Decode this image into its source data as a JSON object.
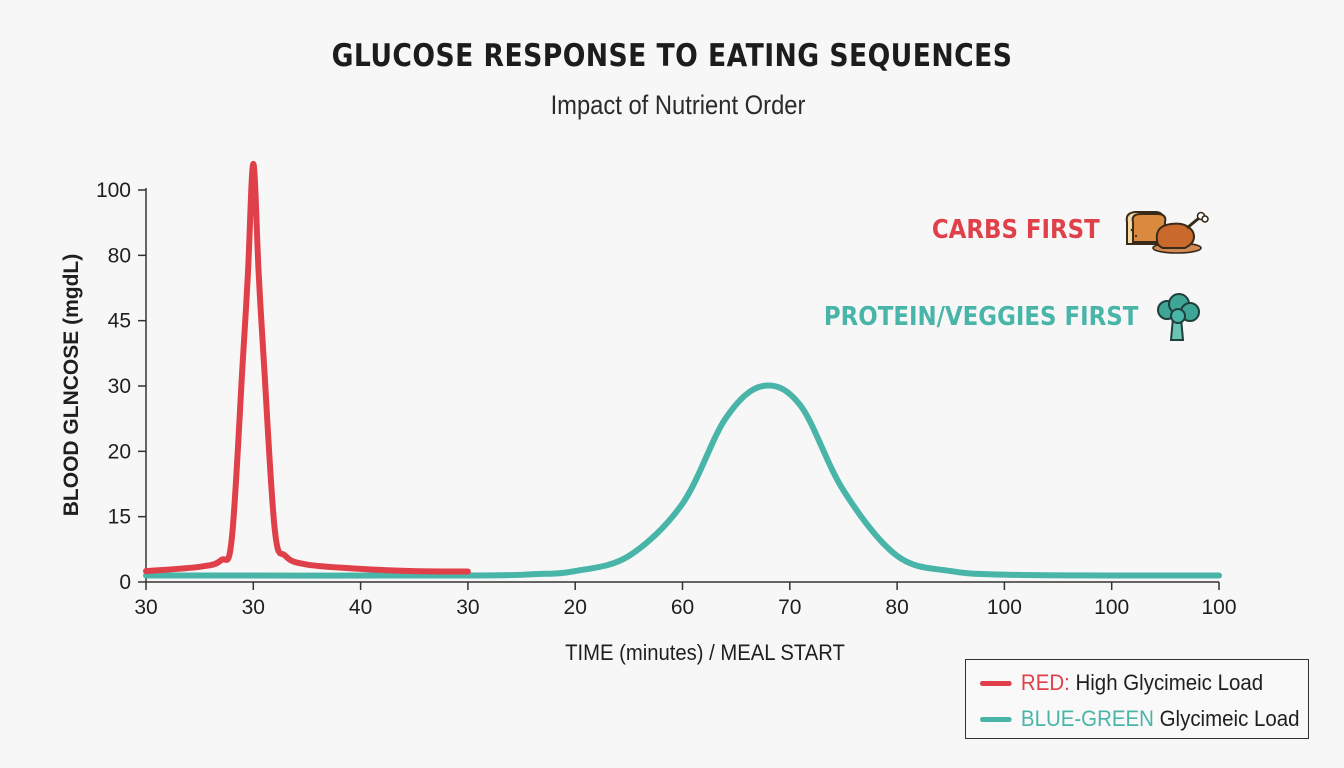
{
  "title": "GLUCOSE RESPONSE TO EATING SEQUENCES",
  "subtitle": "Impact of Nutrient Order",
  "annotations": {
    "carbs": {
      "label": "CARBS FIRST",
      "color": "#e0404a",
      "icon": "bread-and-chicken-icon"
    },
    "protein": {
      "label": "PROTEIN/VEGGIES FIRST",
      "color": "#48b5a8",
      "icon": "broccoli-icon"
    }
  },
  "legend": {
    "items": [
      {
        "key": "RED:",
        "text": " High Glycimeic Load",
        "color": "#e0404a"
      },
      {
        "key": "BLUE-GREEN",
        "text": " Glycimeic Load",
        "color": "#48b5a8"
      }
    ]
  },
  "chart_data": {
    "type": "line",
    "xlabel": "TIME (minutes) / MEAL START",
    "ylabel": "BLOOD GLNCOSE (mgdL)",
    "x_tick_labels": [
      "30",
      "30",
      "40",
      "30",
      "20",
      "60",
      "70",
      "80",
      "100",
      "100",
      "100"
    ],
    "y_tick_labels": [
      "0",
      "15",
      "20",
      "30",
      "45",
      "80",
      "100"
    ],
    "grid": false,
    "legend_position": "bottom-right",
    "series": [
      {
        "name": "RED: High Glycimeic Load",
        "color": "#e0404a",
        "x_index": [
          0,
          0.5,
          0.7,
          0.8,
          0.9,
          0.95,
          1.0,
          1.05,
          1.1,
          1.2,
          1.3,
          1.5,
          2.0,
          2.5,
          3.0
        ],
        "values": [
          2.5,
          3.5,
          5,
          10,
          35,
          70,
          108,
          70,
          35,
          12,
          6,
          4,
          3,
          2.5,
          2.4
        ]
      },
      {
        "name": "BLUE-GREEN Glycimeic Load",
        "color": "#48b5a8",
        "x_index": [
          0,
          3.0,
          3.6,
          4.0,
          4.5,
          5.0,
          5.4,
          5.75,
          6.1,
          6.5,
          7.0,
          7.5,
          8.0,
          9.0,
          10.0
        ],
        "values": [
          1.5,
          1.5,
          1.8,
          2.5,
          6,
          16,
          25,
          30,
          27,
          17,
          6,
          2.5,
          1.7,
          1.5,
          1.5
        ]
      }
    ]
  }
}
